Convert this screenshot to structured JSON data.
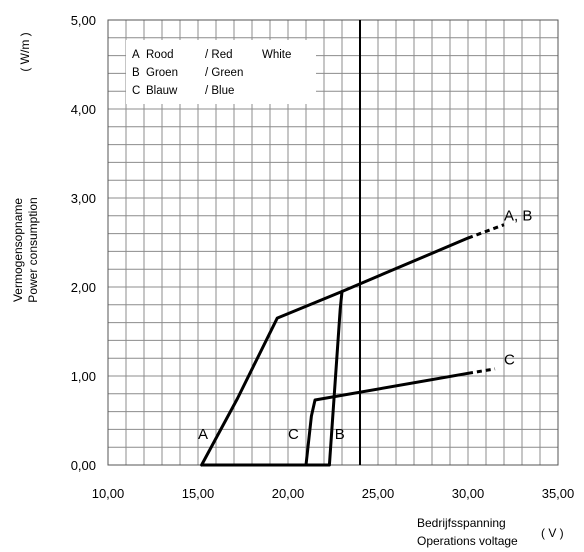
{
  "chart_data": {
    "type": "line",
    "xlim": [
      10,
      35
    ],
    "ylim": [
      0,
      5
    ],
    "x_ticks": [
      "10,00",
      "15,00",
      "20,00",
      "25,00",
      "30,00",
      "35,00"
    ],
    "y_ticks": [
      "0,00",
      "1,00",
      "2,00",
      "3,00",
      "4,00",
      "5,00"
    ],
    "xlabel": {
      "line1": "Bedrijfsspanning",
      "line2": "Operations voltage",
      "unit": "( V )"
    },
    "ylabel": {
      "line1": "Vermogensopname",
      "line2": "Power consumption",
      "unit": "( W/m )"
    },
    "grid": true,
    "legend": {
      "placement": "top-left",
      "rows": [
        {
          "key": "A",
          "nl": "Rood",
          "en": "/ Red",
          "extra": "White"
        },
        {
          "key": "B",
          "nl": "Groen",
          "en": "/ Green",
          "extra": ""
        },
        {
          "key": "C",
          "nl": "Blauw",
          "en": "/ Blue",
          "extra": ""
        }
      ]
    },
    "reference_line": {
      "x": 24
    },
    "series": [
      {
        "name": "A",
        "x": [
          15.2,
          17.2,
          19.4,
          23.0,
          30.0
        ],
        "y": [
          0.0,
          0.75,
          1.65,
          1.95,
          2.55
        ],
        "extension": {
          "x": [
            30.0,
            32.0
          ],
          "y": [
            2.55,
            2.7
          ]
        }
      },
      {
        "name": "B",
        "x": [
          22.3,
          22.9,
          23.0
        ],
        "y": [
          0.0,
          1.75,
          1.95
        ],
        "extension": null
      },
      {
        "name": "C",
        "x": [
          21.0,
          21.3,
          21.5,
          30.0
        ],
        "y": [
          0.0,
          0.55,
          0.73,
          1.03
        ],
        "extension": {
          "x": [
            30.0,
            31.5
          ],
          "y": [
            1.03,
            1.08
          ]
        }
      }
    ],
    "curve_labels": [
      {
        "text": "A, B",
        "x": 32.0,
        "y": 2.75
      },
      {
        "text": "C",
        "x": 32.0,
        "y": 1.13
      },
      {
        "text": "A",
        "x": 15.0,
        "y": 0.29
      },
      {
        "text": "C",
        "x": 20.0,
        "y": 0.29
      },
      {
        "text": "B",
        "x": 22.6,
        "y": 0.29
      }
    ],
    "colors": {
      "line": "#000000",
      "grid": "#8c8c8c"
    }
  }
}
